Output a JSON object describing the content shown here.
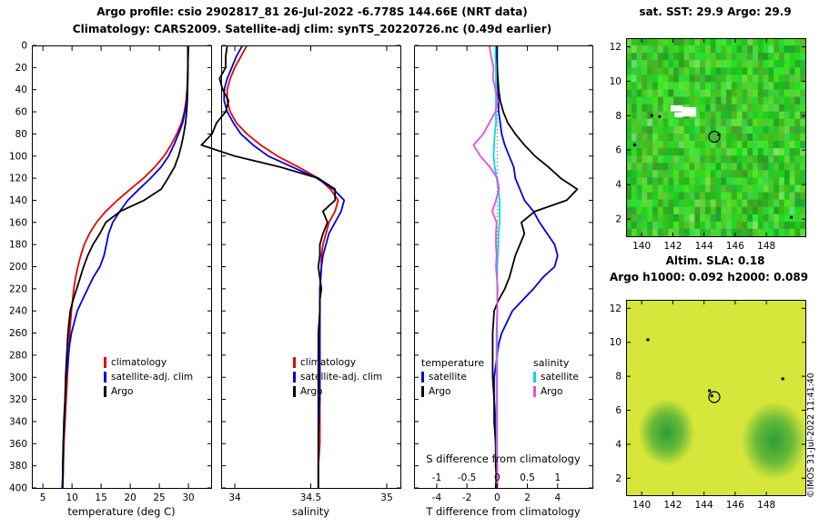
{
  "header": {
    "title_line1": "Argo profile: csio 2902817_81 26-Jul-2022 -6.778S 144.66E (NRT data)",
    "title_line2": "Climatology: CARS2009. Satellite-adj clim: synTS_20220726.nc (0.49d earlier)"
  },
  "right_panel": {
    "sst_title": "sat. SST: 29.9 Argo: 29.9",
    "sla_title": "Altim. SLA: 0.18",
    "h_title": "Argo h1000: 0.092 h2000: 0.089",
    "watermark": "©IMOS 31-Jul-2022 11:41:40"
  },
  "depths": [
    0,
    10,
    20,
    30,
    40,
    50,
    60,
    70,
    80,
    90,
    100,
    110,
    120,
    130,
    140,
    150,
    160,
    170,
    180,
    190,
    200,
    210,
    220,
    230,
    240,
    250,
    260,
    270,
    280,
    290,
    300,
    310,
    320,
    330,
    340,
    350,
    360,
    370,
    380,
    390,
    400
  ],
  "chart_data": [
    {
      "id": "temperature-profile",
      "type": "line",
      "xlabel": "temperature (deg C)",
      "ylabel": "depth (m)",
      "xlim": [
        3.1,
        33.9
      ],
      "xticks": [
        5,
        10,
        15,
        20,
        25,
        30
      ],
      "ylim": [
        0,
        400
      ],
      "ytick_step": 20,
      "series": [
        {
          "name": "climatology",
          "color": "#e10600",
          "values": [
            30.0,
            29.95,
            29.9,
            29.85,
            29.75,
            29.6,
            29.3,
            28.8,
            28.0,
            27.0,
            25.8,
            24.2,
            22.3,
            20.0,
            17.8,
            15.8,
            14.2,
            13.0,
            12.1,
            11.5,
            11.0,
            10.6,
            10.3,
            10.1,
            9.9,
            9.75,
            9.6,
            9.5,
            9.4,
            9.3,
            9.2,
            9.1,
            9.0,
            8.9,
            8.8,
            8.7,
            8.6,
            8.55,
            8.5,
            8.45,
            8.4
          ]
        },
        {
          "name": "satellite-adj. clim",
          "color": "#0000dd",
          "values": [
            30.0,
            29.95,
            29.9,
            29.87,
            29.8,
            29.68,
            29.4,
            29.0,
            28.3,
            27.5,
            26.6,
            25.3,
            23.5,
            21.5,
            19.6,
            18.2,
            17.0,
            16.3,
            15.9,
            15.5,
            14.8,
            13.6,
            12.7,
            11.8,
            10.9,
            10.4,
            9.9,
            9.6,
            9.4,
            9.2,
            9.0,
            8.9,
            8.8,
            8.75,
            8.7,
            8.6,
            8.5,
            8.5,
            8.5,
            8.45,
            8.4
          ]
        },
        {
          "name": "Argo",
          "color": "#000000",
          "values": [
            29.9,
            29.9,
            29.9,
            29.9,
            29.85,
            29.8,
            29.7,
            29.5,
            29.2,
            28.8,
            28.3,
            27.6,
            26.5,
            25.3,
            22.4,
            18.3,
            15.8,
            14.8,
            13.6,
            12.7,
            12.0,
            11.4,
            10.8,
            10.2,
            9.7,
            9.5,
            9.3,
            9.2,
            9.1,
            9.0,
            8.9,
            8.85,
            8.8,
            8.7,
            8.6,
            8.55,
            8.5,
            8.45,
            8.4,
            8.4,
            8.3
          ]
        }
      ]
    },
    {
      "id": "salinity-profile",
      "type": "line",
      "xlabel": "salinity",
      "ylabel": "depth (m)",
      "xlim": [
        33.91,
        35.09
      ],
      "xticks": [
        34,
        34.5,
        35
      ],
      "ylim": [
        0,
        400
      ],
      "ytick_step": 20,
      "series": [
        {
          "name": "climatology",
          "color": "#e10600",
          "values": [
            34.08,
            34.04,
            34.0,
            33.97,
            33.95,
            33.95,
            33.97,
            34.01,
            34.08,
            34.17,
            34.28,
            34.42,
            34.55,
            34.63,
            34.68,
            34.66,
            34.62,
            34.6,
            34.58,
            34.57,
            34.57,
            34.565,
            34.56,
            34.56,
            34.56,
            34.56,
            34.56,
            34.56,
            34.56,
            34.56,
            34.56,
            34.56,
            34.56,
            34.56,
            34.56,
            34.56,
            34.56,
            34.555,
            34.55,
            34.55,
            34.55
          ]
        },
        {
          "name": "satellite-adj. clim",
          "color": "#0000dd",
          "values": [
            34.05,
            34.01,
            33.98,
            33.95,
            33.93,
            33.93,
            33.95,
            33.99,
            34.04,
            34.12,
            34.22,
            34.38,
            34.54,
            34.65,
            34.72,
            34.7,
            34.66,
            34.62,
            34.6,
            34.58,
            34.57,
            34.565,
            34.56,
            34.56,
            34.56,
            34.56,
            34.56,
            34.56,
            34.56,
            34.56,
            34.56,
            34.56,
            34.56,
            34.555,
            34.555,
            34.55,
            34.55,
            34.55,
            34.55,
            34.55,
            34.55
          ]
        },
        {
          "name": "Argo",
          "color": "#000000",
          "values": [
            33.95,
            33.94,
            33.94,
            33.9,
            33.92,
            33.96,
            33.94,
            33.88,
            33.85,
            33.78,
            34.0,
            34.3,
            34.55,
            34.66,
            34.66,
            34.58,
            34.61,
            34.58,
            34.56,
            34.56,
            34.55,
            34.56,
            34.57,
            34.56,
            34.56,
            34.555,
            34.55,
            34.55,
            34.55,
            34.55,
            34.55,
            34.55,
            34.55,
            34.55,
            34.55,
            34.55,
            34.55,
            34.55,
            34.55,
            34.55,
            34.55
          ]
        }
      ]
    },
    {
      "id": "difference-profile",
      "type": "line",
      "xlabel": "T difference from climatology",
      "ylabel": "depth (m)",
      "xlim": [
        -5.5,
        6.3
      ],
      "xticks": [
        -4,
        -2,
        0,
        2,
        4
      ],
      "ylim": [
        0,
        400
      ],
      "ytick_step": 20,
      "zero_line": true,
      "secondary_axis": {
        "label": "S difference from climatology",
        "ticks": [
          -1,
          -0.5,
          0,
          0.5,
          1
        ],
        "scale": 4
      },
      "legend": {
        "col1_header": "temperature",
        "col2_header": "salinity"
      },
      "series": [
        {
          "name": "satellite",
          "group": "temperature",
          "axis": "T",
          "color": "#0000dd",
          "values": [
            0,
            0,
            0,
            0.02,
            0.05,
            0.08,
            0.1,
            0.2,
            0.3,
            0.5,
            0.8,
            1.1,
            1.2,
            1.5,
            1.8,
            2.4,
            2.8,
            3.3,
            3.8,
            4.0,
            3.8,
            3.0,
            2.4,
            1.7,
            1.0,
            0.65,
            0.3,
            0.1,
            0.0,
            -0.1,
            -0.2,
            -0.2,
            -0.2,
            -0.15,
            -0.1,
            -0.1,
            -0.1,
            -0.05,
            0,
            0,
            0
          ]
        },
        {
          "name": "Argo",
          "group": "temperature",
          "axis": "T",
          "color": "#000000",
          "values": [
            -0.1,
            -0.05,
            0,
            0.05,
            0.1,
            0.2,
            0.4,
            0.7,
            1.2,
            1.8,
            2.5,
            3.4,
            4.2,
            5.3,
            4.6,
            2.5,
            1.6,
            1.8,
            1.5,
            1.2,
            1.0,
            0.8,
            0.5,
            0.1,
            -0.2,
            -0.25,
            -0.3,
            -0.3,
            -0.3,
            -0.3,
            -0.3,
            -0.25,
            -0.2,
            -0.2,
            -0.2,
            -0.15,
            -0.1,
            -0.1,
            -0.1,
            -0.05,
            -0.1
          ]
        },
        {
          "name": "satellite",
          "group": "salinity",
          "axis": "S",
          "color": "#00d9e6",
          "values": [
            -0.03,
            -0.03,
            -0.02,
            -0.02,
            -0.02,
            -0.02,
            -0.02,
            -0.02,
            -0.04,
            -0.05,
            -0.06,
            -0.04,
            -0.01,
            0.02,
            0.04,
            0.04,
            0.04,
            0.02,
            0.02,
            0.01,
            0.0,
            0.0,
            0.0,
            0.0,
            0.0,
            0.0,
            0.0,
            0.0,
            0.0,
            0.0,
            0.0,
            0.0,
            0.0,
            0.0,
            0.0,
            0.0,
            0.0,
            0.0,
            0.0,
            0.0,
            0.0
          ]
        },
        {
          "name": "Argo",
          "group": "salinity",
          "axis": "S",
          "color": "#e64fd8",
          "values": [
            -0.13,
            -0.1,
            -0.06,
            -0.07,
            -0.03,
            0.01,
            -0.03,
            -0.13,
            -0.23,
            -0.39,
            -0.28,
            -0.12,
            0.0,
            0.03,
            -0.02,
            -0.08,
            -0.01,
            -0.02,
            -0.02,
            -0.01,
            -0.02,
            -0.005,
            0.01,
            0.0,
            0.0,
            -0.005,
            -0.01,
            -0.01,
            -0.01,
            -0.01,
            -0.01,
            -0.01,
            -0.01,
            -0.01,
            -0.01,
            -0.01,
            -0.01,
            -0.01,
            0.0,
            0.0,
            0.0
          ]
        }
      ]
    },
    {
      "id": "sst-map",
      "type": "heatmap",
      "title": "sat. SST: 29.9 Argo: 29.9",
      "xlim": [
        139,
        150.5
      ],
      "xticks": [
        140,
        142,
        144,
        146,
        148
      ],
      "ylim": [
        1,
        12.5
      ],
      "yticks": [
        2,
        4,
        6,
        8,
        10,
        12
      ],
      "marker": {
        "lon": 144.66,
        "lat": 6.778
      },
      "noise_seed": 7,
      "white_patches": [
        [
          141.85,
          8.6,
          0.8,
          0.35
        ],
        [
          142.55,
          8.5,
          0.95,
          0.55
        ],
        [
          142.1,
          8.2,
          0.5,
          0.3
        ]
      ],
      "specks": [
        [
          140.65,
          8.0
        ],
        [
          141.15,
          7.95
        ],
        [
          144.95,
          6.9
        ],
        [
          139.55,
          6.3
        ],
        [
          149.6,
          2.1
        ]
      ]
    },
    {
      "id": "sla-map",
      "type": "heatmap",
      "title": "Altim. SLA: 0.18",
      "xlim": [
        139,
        150.5
      ],
      "xticks": [
        140,
        142,
        144,
        146,
        148
      ],
      "ylim": [
        1,
        12.5
      ],
      "yticks": [
        2,
        4,
        6,
        8,
        10,
        12
      ],
      "marker": {
        "lon": 144.66,
        "lat": 6.778
      },
      "base_color": "#d6e63a",
      "blob_color": "#1f9c38",
      "blobs": [
        {
          "lon": 141.6,
          "lat": 4.7,
          "r": 1.8
        },
        {
          "lon": 148.5,
          "lat": 4.2,
          "r": 2.1
        }
      ],
      "specks": [
        [
          144.35,
          7.15
        ],
        [
          140.4,
          10.15
        ],
        [
          149.05,
          7.85
        ],
        [
          144.5,
          6.85
        ]
      ]
    }
  ]
}
